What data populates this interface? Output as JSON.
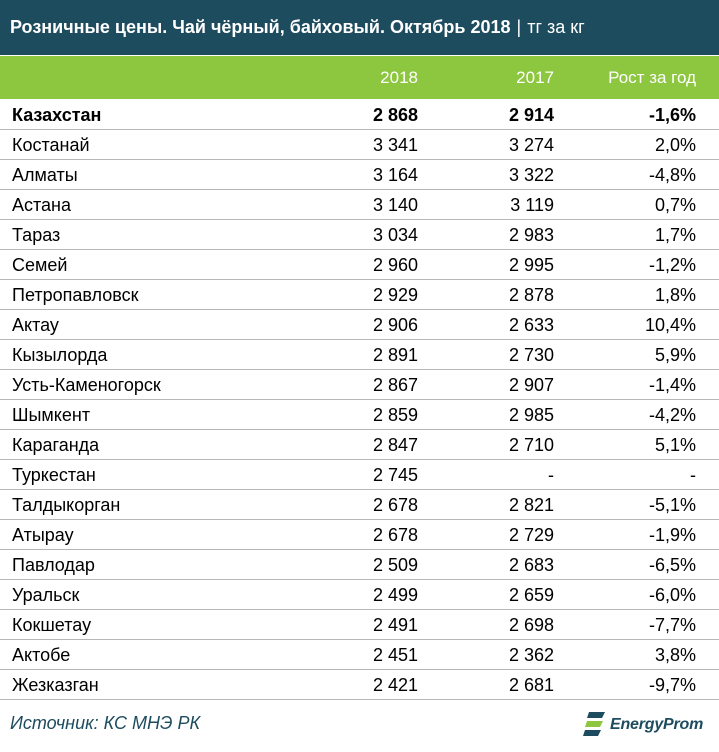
{
  "header": {
    "title": "Розничные цены. Чай чёрный, байховый. Октябрь 2018",
    "separator": "|",
    "unit": "тг за кг"
  },
  "columns": [
    "",
    "2018",
    "2017",
    "Рост за год"
  ],
  "chart_data": {
    "type": "table",
    "title": "Розничные цены. Чай чёрный, байховый. Октябрь 2018",
    "unit": "тг за кг",
    "columns": [
      "2018",
      "2017",
      "Рост за год"
    ],
    "rows": [
      {
        "name": "Казахстан",
        "v2018": "2 868",
        "v2017": "2 914",
        "growth": "-1,6%",
        "bold": true
      },
      {
        "name": "Костанай",
        "v2018": "3 341",
        "v2017": "3 274",
        "growth": "2,0%"
      },
      {
        "name": "Алматы",
        "v2018": "3 164",
        "v2017": "3 322",
        "growth": "-4,8%"
      },
      {
        "name": "Астана",
        "v2018": "3 140",
        "v2017": "3 119",
        "growth": "0,7%"
      },
      {
        "name": "Тараз",
        "v2018": "3 034",
        "v2017": "2 983",
        "growth": "1,7%"
      },
      {
        "name": "Семей",
        "v2018": "2 960",
        "v2017": "2 995",
        "growth": "-1,2%"
      },
      {
        "name": "Петропавловск",
        "v2018": "2 929",
        "v2017": "2 878",
        "growth": "1,8%"
      },
      {
        "name": "Актау",
        "v2018": "2 906",
        "v2017": "2 633",
        "growth": "10,4%"
      },
      {
        "name": "Кызылорда",
        "v2018": "2 891",
        "v2017": "2 730",
        "growth": "5,9%"
      },
      {
        "name": "Усть-Каменогорск",
        "v2018": "2 867",
        "v2017": "2 907",
        "growth": "-1,4%"
      },
      {
        "name": "Шымкент",
        "v2018": "2 859",
        "v2017": "2 985",
        "growth": "-4,2%"
      },
      {
        "name": "Караганда",
        "v2018": "2 847",
        "v2017": "2 710",
        "growth": "5,1%"
      },
      {
        "name": "Туркестан",
        "v2018": "2 745",
        "v2017": "-",
        "growth": "-"
      },
      {
        "name": "Талдыкорган",
        "v2018": "2 678",
        "v2017": "2 821",
        "growth": "-5,1%"
      },
      {
        "name": "Атырау",
        "v2018": "2 678",
        "v2017": "2 729",
        "growth": "-1,9%"
      },
      {
        "name": "Павлодар",
        "v2018": "2 509",
        "v2017": "2 683",
        "growth": "-6,5%"
      },
      {
        "name": "Уральск",
        "v2018": "2 499",
        "v2017": "2 659",
        "growth": "-6,0%"
      },
      {
        "name": "Кокшетау",
        "v2018": "2 491",
        "v2017": "2 698",
        "growth": "-7,7%"
      },
      {
        "name": "Актобе",
        "v2018": "2 451",
        "v2017": "2 362",
        "growth": "3,8%"
      },
      {
        "name": "Жезказган",
        "v2018": "2 421",
        "v2017": "2 681",
        "growth": "-9,7%"
      }
    ]
  },
  "footer": {
    "source": "Источник: КС МНЭ РК",
    "logo_text": "EnergyProm",
    "logo_icon": "energyprom-logo-icon"
  },
  "colors": {
    "title_bg": "#1e4c5f",
    "header_bg": "#8dc63f",
    "row_border": "#b7b7b7",
    "source_text": "#1e4c5f"
  }
}
